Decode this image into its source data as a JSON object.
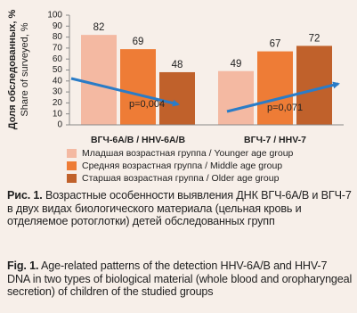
{
  "chart_data": {
    "type": "bar",
    "y_label": "Доля обследованных, %",
    "y_label_en": "Share of surveyed, %",
    "categories": [
      "ВГЧ-6А/В / HHV-6A/B",
      "ВГЧ-7 / HHV-7"
    ],
    "series": [
      {
        "name": "Младшая возрастная группа / Younger age group",
        "color": "#f4b9a2",
        "values": [
          82,
          49
        ]
      },
      {
        "name": "Средняя возрастная группа / Middle age group",
        "color": "#ee7c36",
        "values": [
          69,
          67
        ]
      },
      {
        "name": "Старшая возрастная группа / Older age group",
        "color": "#c0612b",
        "values": [
          48,
          72
        ]
      }
    ],
    "annotations": [
      "p=0,004",
      "p=0,071"
    ],
    "ylim": [
      0,
      100
    ],
    "yticks": [
      0,
      10,
      20,
      30,
      40,
      50,
      60,
      70,
      80,
      90,
      100
    ],
    "grid": false
  },
  "caption": {
    "ru_label": "Рис. 1.",
    "ru_text": "Возрастные особенности выявления ДНК ВГЧ-6А/В и ВГЧ-7 в двух видах биологического материала (цельная кровь и отделяемое ротоглотки) детей обследованных групп",
    "en_label": "Fig. 1.",
    "en_text": "Age-related patterns of the detection HHV-6A/B and HHV-7 DNA in two types of biological material (whole blood and oropharyngeal secretion) of children of the studied groups"
  }
}
